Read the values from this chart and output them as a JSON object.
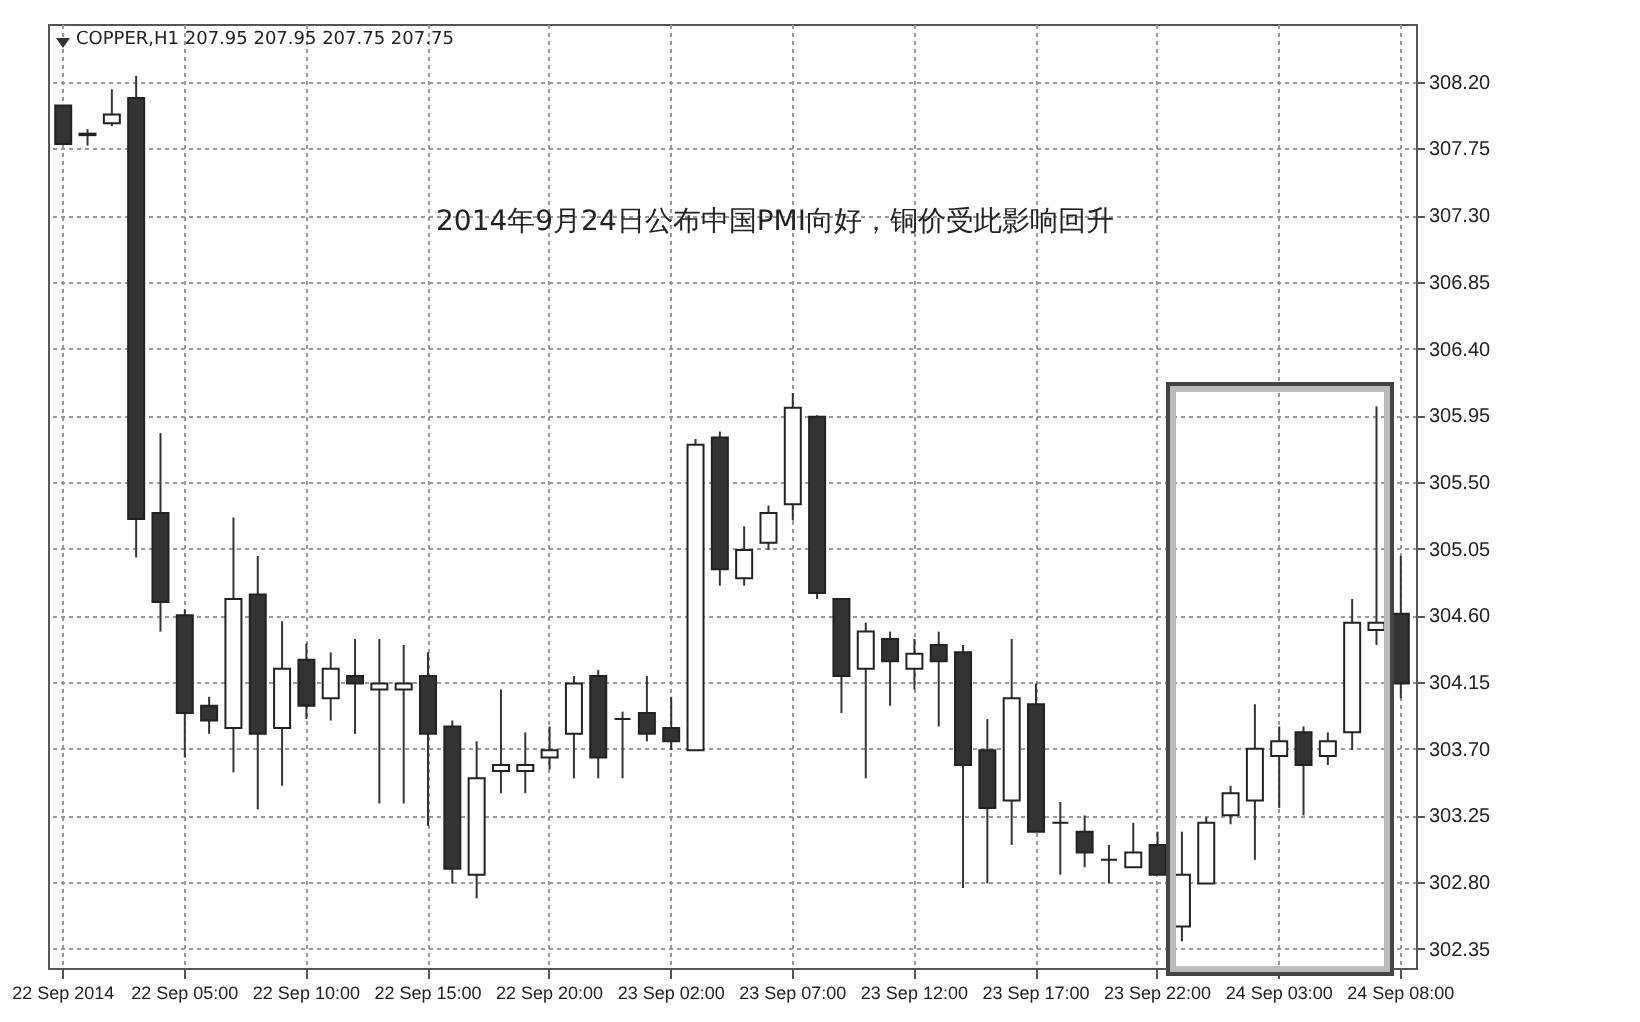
{
  "chart_data": {
    "type": "candlestick",
    "annotations": [
      "COPPER,H1  207.95 207.95 207.75 207.75",
      "2014年9月24日公布中国PMI向好，铜价受此影响回升"
    ],
    "categories": [
      "22 Sep 2014",
      null,
      null,
      null,
      null,
      "22 Sep 05:00",
      null,
      null,
      null,
      null,
      "22 Sep 10:00",
      null,
      null,
      null,
      null,
      "22 Sep 15:00",
      null,
      null,
      null,
      null,
      "22 Sep 20:00",
      null,
      null,
      null,
      null,
      "23 Sep 02:00",
      null,
      null,
      null,
      null,
      "23 Sep 07:00",
      null,
      null,
      null,
      null,
      "23 Sep 12:00",
      null,
      null,
      null,
      null,
      "23 Sep 17:00",
      null,
      null,
      null,
      null,
      "23 Sep 22:00",
      null,
      null,
      null,
      null,
      "24 Sep 03:00",
      null,
      null,
      null,
      null,
      "24 Sep 08:00"
    ],
    "ohlc": [
      [
        308.04,
        308.04,
        307.78,
        307.78
      ],
      [
        307.84,
        307.88,
        307.77,
        307.85
      ],
      [
        307.92,
        308.15,
        307.9,
        307.98
      ],
      [
        308.09,
        308.24,
        304.99,
        305.25
      ],
      [
        305.29,
        305.83,
        304.49,
        304.69
      ],
      [
        304.6,
        304.64,
        303.64,
        303.94
      ],
      [
        303.99,
        304.05,
        303.8,
        303.89
      ],
      [
        303.84,
        305.26,
        303.54,
        304.71
      ],
      [
        304.74,
        305.0,
        303.29,
        303.8
      ],
      [
        303.84,
        304.56,
        303.45,
        304.24
      ],
      [
        304.3,
        304.41,
        303.9,
        303.99
      ],
      [
        304.04,
        304.35,
        303.89,
        304.24
      ],
      [
        304.19,
        304.44,
        303.8,
        304.14
      ],
      [
        304.1,
        304.44,
        303.33,
        304.14
      ],
      [
        304.1,
        304.4,
        303.33,
        304.14
      ],
      [
        304.19,
        304.35,
        303.18,
        303.8
      ],
      [
        303.85,
        303.89,
        302.79,
        302.89
      ],
      [
        302.85,
        303.75,
        302.69,
        303.5
      ],
      [
        303.55,
        304.1,
        303.4,
        303.59
      ],
      [
        303.55,
        303.81,
        303.4,
        303.59
      ],
      [
        303.64,
        303.85,
        303.56,
        303.69
      ],
      [
        303.8,
        304.19,
        303.5,
        304.14
      ],
      [
        304.19,
        304.23,
        303.5,
        303.64
      ],
      [
        303.9,
        303.95,
        303.5,
        303.9
      ],
      [
        303.94,
        304.19,
        303.75,
        303.8
      ],
      [
        303.84,
        304.05,
        303.69,
        303.75
      ],
      [
        303.69,
        305.79,
        303.69,
        305.75
      ],
      [
        305.8,
        305.84,
        304.8,
        304.91
      ],
      [
        304.85,
        305.2,
        304.8,
        305.04
      ],
      [
        305.09,
        305.34,
        305.04,
        305.29
      ],
      [
        305.35,
        306.1,
        305.24,
        306.0
      ],
      [
        305.94,
        305.95,
        304.71,
        304.75
      ],
      [
        304.71,
        304.71,
        303.94,
        304.19
      ],
      [
        304.24,
        304.55,
        303.5,
        304.49
      ],
      [
        304.44,
        304.49,
        303.99,
        304.29
      ],
      [
        304.24,
        304.44,
        304.1,
        304.34
      ],
      [
        304.4,
        304.49,
        303.85,
        304.29
      ],
      [
        304.35,
        304.4,
        302.76,
        303.59
      ],
      [
        303.69,
        303.9,
        302.79,
        303.3
      ],
      [
        303.35,
        304.44,
        303.05,
        304.04
      ],
      [
        304.0,
        304.14,
        303.14,
        303.14
      ],
      [
        303.2,
        303.34,
        302.85,
        303.2
      ],
      [
        303.14,
        303.25,
        302.9,
        303.0
      ],
      [
        302.95,
        303.05,
        302.79,
        302.95
      ],
      [
        302.9,
        303.2,
        302.9,
        303.0
      ],
      [
        303.05,
        303.14,
        302.85,
        302.85
      ],
      [
        302.5,
        303.14,
        302.4,
        302.85
      ],
      [
        302.79,
        303.24,
        302.79,
        303.2
      ],
      [
        303.25,
        303.45,
        303.19,
        303.4
      ],
      [
        303.35,
        304.0,
        302.95,
        303.7
      ],
      [
        303.65,
        303.85,
        303.3,
        303.75
      ],
      [
        303.81,
        303.85,
        303.25,
        303.59
      ],
      [
        303.65,
        303.81,
        303.59,
        303.75
      ],
      [
        303.81,
        304.71,
        303.69,
        304.55
      ],
      [
        304.5,
        306.01,
        304.4,
        304.55
      ],
      [
        304.61,
        305.0,
        304.04,
        304.14
      ]
    ],
    "ylim": [
      302.22,
      308.59
    ],
    "yticks": [
      {
        "value": 308.2,
        "label": "308.20"
      },
      {
        "value": 307.75,
        "label": "307.75"
      },
      {
        "value": 307.3,
        "label": "307.30"
      },
      {
        "value": 306.85,
        "label": "306.85"
      },
      {
        "value": 306.4,
        "label": "306.40"
      },
      {
        "value": 305.95,
        "label": "305.95"
      },
      {
        "value": 305.5,
        "label": "305.50"
      },
      {
        "value": 305.05,
        "label": "305.05"
      },
      {
        "value": 304.6,
        "label": "304.60"
      },
      {
        "value": 304.15,
        "label": "304.15"
      },
      {
        "value": 303.7,
        "label": "303.70"
      },
      {
        "value": 303.25,
        "label": "303.25"
      },
      {
        "value": 302.8,
        "label": "302.80"
      },
      {
        "value": 302.35,
        "label": "302.35"
      }
    ],
    "grid": true
  }
}
